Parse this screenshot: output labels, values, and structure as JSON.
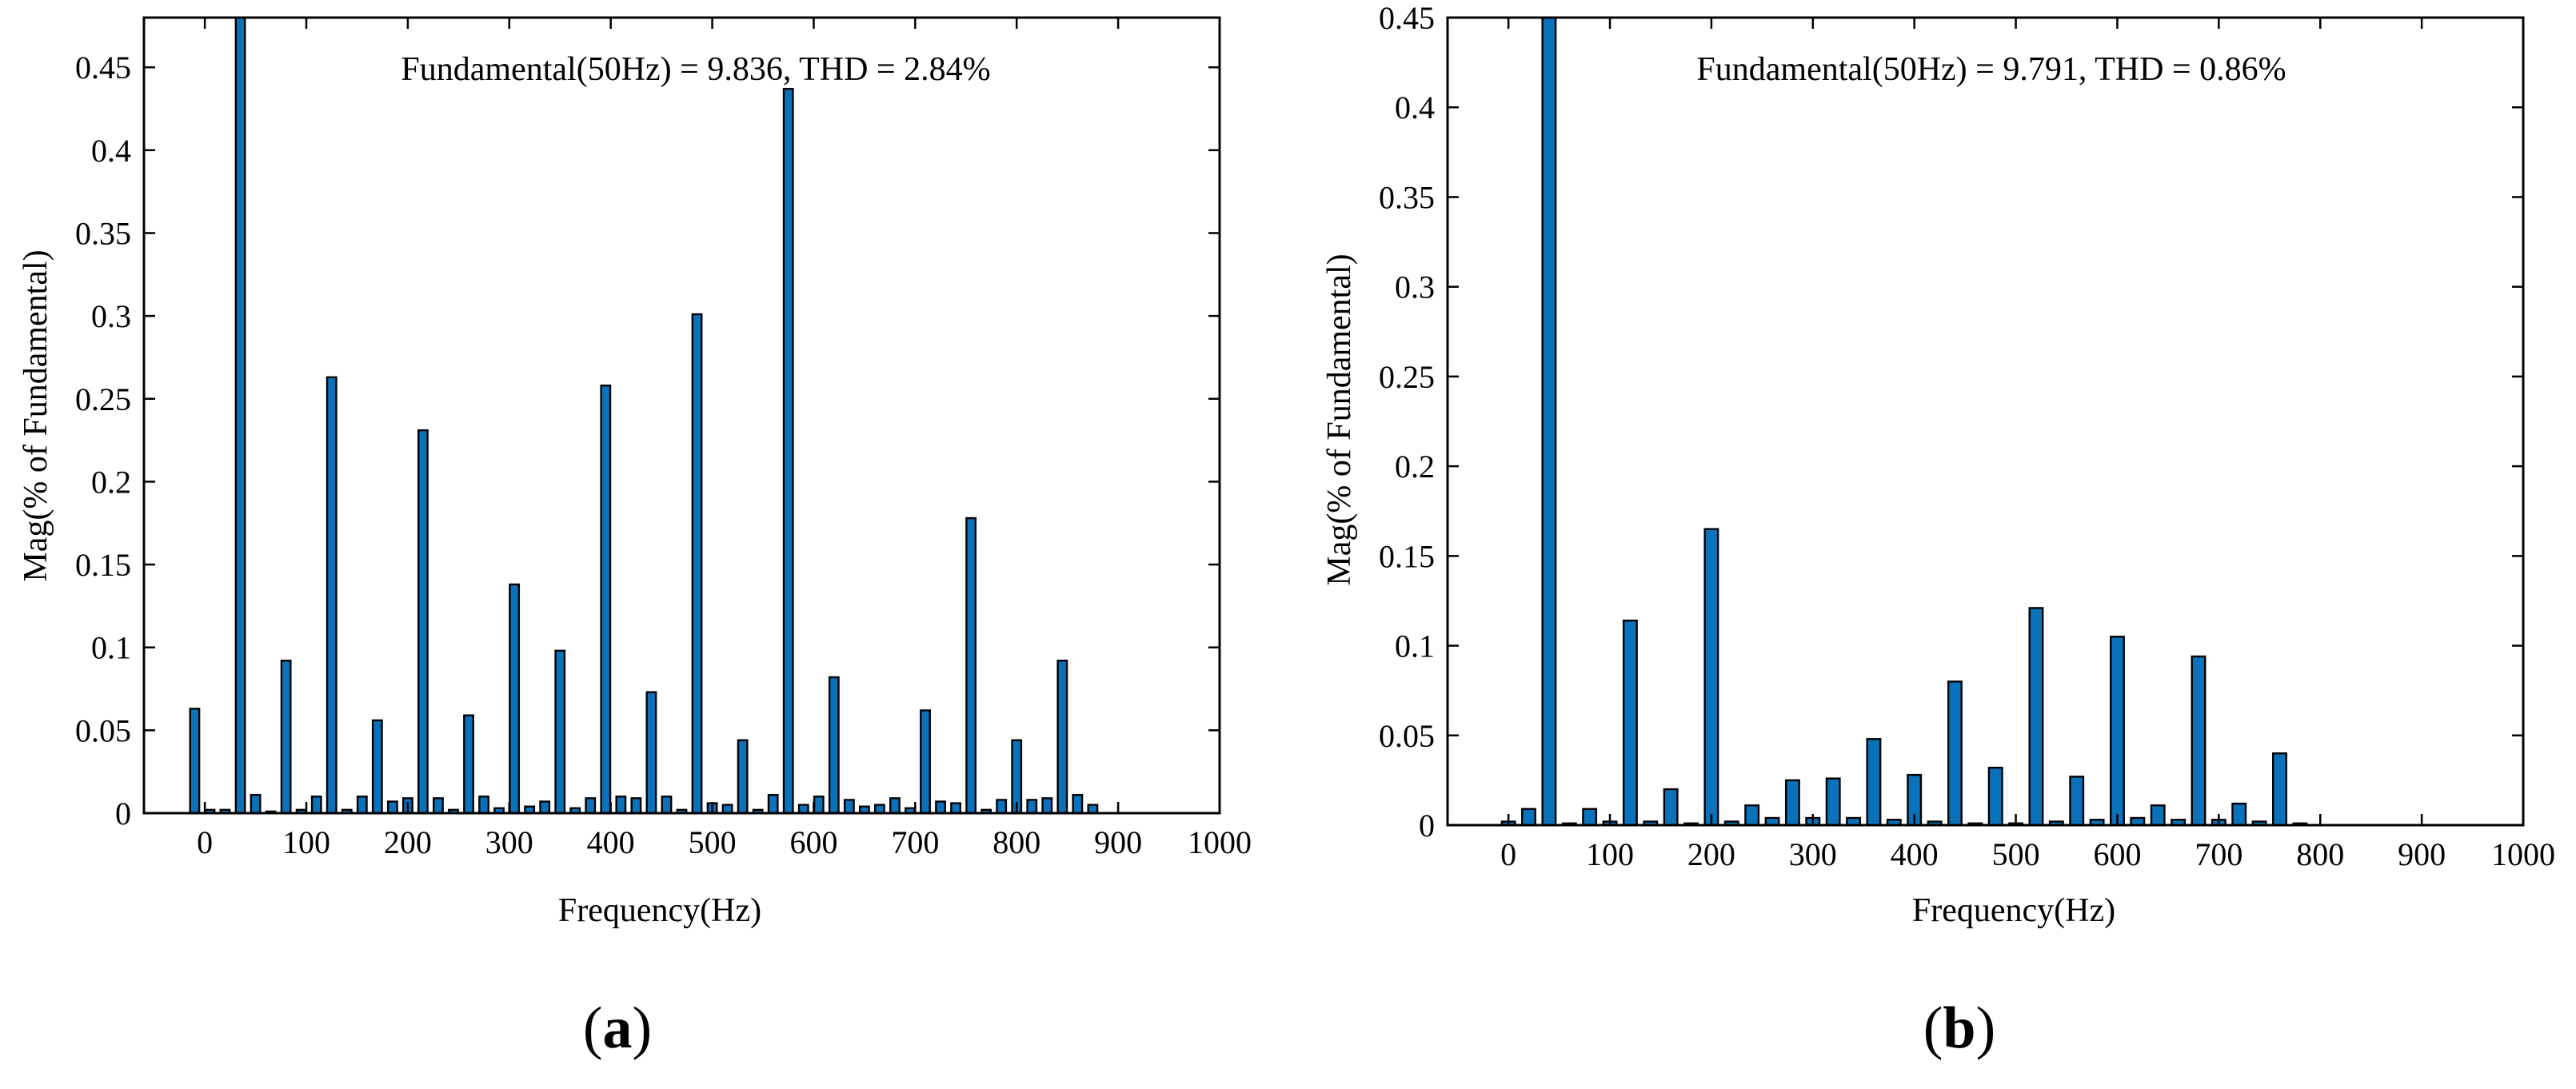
{
  "figure": {
    "panels": [
      {
        "label_open": "(",
        "label_letter": "a",
        "label_close": ")"
      },
      {
        "label_open": "(",
        "label_letter": "b",
        "label_close": ")"
      }
    ]
  },
  "colors": {
    "bar_fill": "#0A72BA",
    "bar_stroke": "#000000",
    "axis": "#000000",
    "background": "#FFFFFF"
  },
  "chart_data": [
    {
      "type": "bar",
      "panel": "a",
      "annotation": "Fundamental(50Hz) = 9.836, THD = 2.84%",
      "xlabel": "Frequency(Hz)",
      "ylabel": "Mag(% of Fundamental)",
      "xlim": [
        -60,
        1000
      ],
      "ylim": [
        0,
        0.48
      ],
      "xticks": [
        0,
        100,
        200,
        300,
        400,
        500,
        600,
        700,
        800,
        900,
        1000
      ],
      "xtick_labels": [
        "0",
        "100",
        "200",
        "300",
        "400",
        "500",
        "600",
        "700",
        "800",
        "900",
        "1000"
      ],
      "yticks": [
        0,
        0.05,
        0.1,
        0.15,
        0.2,
        0.25,
        0.3,
        0.35,
        0.4,
        0.45
      ],
      "ytick_labels": [
        "0",
        "0.05",
        "0.1",
        "0.15",
        "0.2",
        "0.25",
        "0.3",
        "0.35",
        "0.4",
        "0.45"
      ],
      "bar_width_hz": 9,
      "x": [
        -10,
        5,
        20,
        35,
        50,
        65,
        80,
        95,
        110,
        125,
        140,
        155,
        170,
        185,
        200,
        215,
        230,
        245,
        260,
        275,
        290,
        305,
        320,
        335,
        350,
        365,
        380,
        395,
        410,
        425,
        440,
        455,
        470,
        485,
        500,
        515,
        530,
        545,
        560,
        575,
        590,
        605,
        620,
        635,
        650,
        665,
        680,
        695,
        710,
        725,
        740,
        755,
        770,
        785,
        800,
        815,
        830,
        845,
        860,
        875,
        890,
        905,
        920,
        935,
        950,
        965
      ],
      "values": [
        0.063,
        0.002,
        0.002,
        0.48,
        0.011,
        0.001,
        0.092,
        0.002,
        0.01,
        0.263,
        0.002,
        0.01,
        0.056,
        0.007,
        0.009,
        0.231,
        0.009,
        0.002,
        0.059,
        0.01,
        0.003,
        0.138,
        0.004,
        0.007,
        0.098,
        0.003,
        0.009,
        0.258,
        0.01,
        0.009,
        0.073,
        0.01,
        0.002,
        0.301,
        0.006,
        0.005,
        0.044,
        0.002,
        0.011,
        0.437,
        0.005,
        0.01,
        0.082,
        0.008,
        0.004,
        0.005,
        0.009,
        0.003,
        0.062,
        0.007,
        0.006,
        0.178,
        0.002,
        0.008,
        0.044,
        0.008,
        0.009,
        0.092,
        0.011,
        0.005,
        0,
        0,
        0,
        0,
        0,
        0
      ]
    },
    {
      "type": "bar",
      "panel": "b",
      "annotation": "Fundamental(50Hz) = 9.791, THD = 0.86%",
      "xlabel": "Frequency(Hz)",
      "ylabel": "Mag(% of Fundamental)",
      "xlim": [
        -60,
        1000
      ],
      "ylim": [
        0,
        0.45
      ],
      "xticks": [
        0,
        100,
        200,
        300,
        400,
        500,
        600,
        700,
        800,
        900,
        1000
      ],
      "xtick_labels": [
        "0",
        "100",
        "200",
        "300",
        "400",
        "500",
        "600",
        "700",
        "800",
        "900",
        "1000"
      ],
      "yticks": [
        0,
        0.05,
        0.1,
        0.15,
        0.2,
        0.25,
        0.3,
        0.35,
        0.4,
        0.45
      ],
      "ytick_labels": [
        "0",
        "0.05",
        "0.1",
        "0.15",
        "0.2",
        "0.25",
        "0.3",
        "0.35",
        "0.4",
        "0.45"
      ],
      "bar_width_hz": 13,
      "x": [
        0,
        20,
        40,
        60,
        80,
        100,
        120,
        140,
        160,
        180,
        200,
        220,
        240,
        260,
        280,
        300,
        320,
        340,
        360,
        380,
        400,
        420,
        440,
        460,
        480,
        500,
        520,
        540,
        560,
        580,
        600,
        620,
        640,
        660,
        680,
        700,
        720,
        740,
        760,
        780,
        800,
        820,
        840,
        860,
        880,
        900,
        920,
        940
      ],
      "values": [
        0.002,
        0.009,
        0.45,
        0.001,
        0.009,
        0.002,
        0.114,
        0.002,
        0.02,
        0.001,
        0.165,
        0.002,
        0.011,
        0.004,
        0.025,
        0.004,
        0.026,
        0.004,
        0.048,
        0.003,
        0.028,
        0.002,
        0.08,
        0.001,
        0.032,
        0.001,
        0.121,
        0.002,
        0.027,
        0.003,
        0.105,
        0.004,
        0.011,
        0.003,
        0.094,
        0.003,
        0.012,
        0.002,
        0.04,
        0.001,
        0,
        0,
        0,
        0,
        0,
        0,
        0,
        0
      ]
    }
  ]
}
